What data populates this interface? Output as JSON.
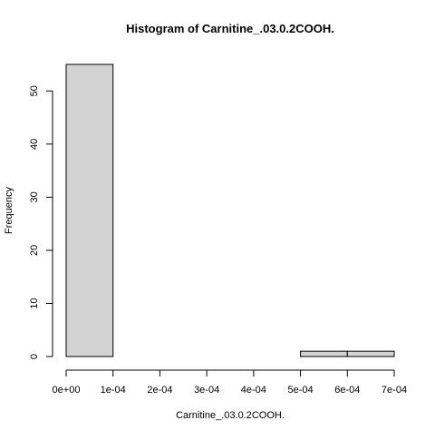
{
  "chart_data": {
    "type": "bar",
    "subtype": "histogram",
    "title": "Histogram of Carnitine_.03.0.2COOH.",
    "xlabel": "Carnitine_.03.0.2COOH.",
    "ylabel": "Frequency",
    "bins": [
      {
        "from": 0.0,
        "to": 0.0001,
        "count": 55
      },
      {
        "from": 0.0001,
        "to": 0.0002,
        "count": 0
      },
      {
        "from": 0.0002,
        "to": 0.0003,
        "count": 0
      },
      {
        "from": 0.0003,
        "to": 0.0004,
        "count": 0
      },
      {
        "from": 0.0004,
        "to": 0.0005,
        "count": 0
      },
      {
        "from": 0.0005,
        "to": 0.0006,
        "count": 1
      },
      {
        "from": 0.0006,
        "to": 0.0007,
        "count": 1
      }
    ],
    "xlim": [
      0,
      0.0007
    ],
    "ylim": [
      0,
      55
    ],
    "x_ticks": [
      {
        "value": 0.0,
        "label": "0e+00"
      },
      {
        "value": 0.0001,
        "label": "1e-04"
      },
      {
        "value": 0.0002,
        "label": "2e-04"
      },
      {
        "value": 0.0003,
        "label": "3e-04"
      },
      {
        "value": 0.0004,
        "label": "4e-04"
      },
      {
        "value": 0.0005,
        "label": "5e-04"
      },
      {
        "value": 0.0006,
        "label": "6e-04"
      },
      {
        "value": 0.0007,
        "label": "7e-04"
      }
    ],
    "y_ticks": [
      {
        "value": 0,
        "label": "0"
      },
      {
        "value": 10,
        "label": "10"
      },
      {
        "value": 20,
        "label": "20"
      },
      {
        "value": 30,
        "label": "30"
      },
      {
        "value": 40,
        "label": "40"
      },
      {
        "value": 50,
        "label": "50"
      }
    ],
    "grid": false,
    "bar_fill": "#d3d3d3",
    "bar_stroke": "#000000"
  }
}
